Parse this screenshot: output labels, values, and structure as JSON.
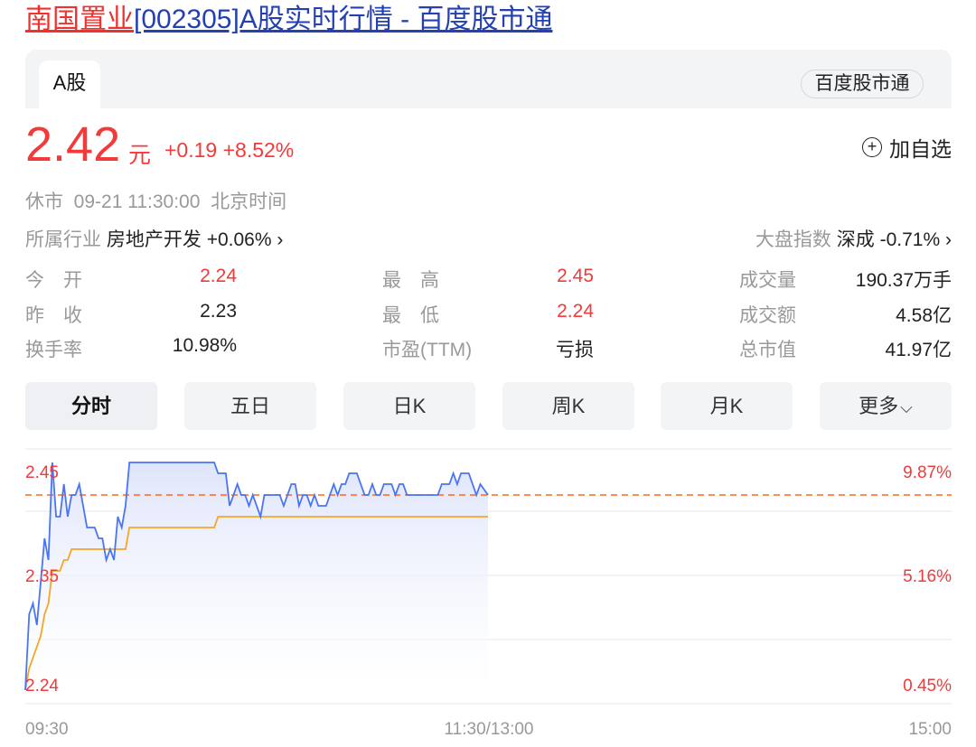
{
  "title": {
    "name": "南国置业",
    "rest": "[002305]A股实时行情 - 百度股市通"
  },
  "tabs": {
    "active": "A股",
    "badge": "百度股市通"
  },
  "quote": {
    "price": "2.42",
    "unit": "元",
    "change": "+0.19",
    "change_pct": "+8.52%",
    "add_watch": "加自选",
    "status": "休市",
    "datetime": "09-21 11:30:00",
    "timezone": "北京时间",
    "industry_label": "所属行业",
    "industry_name": "房地产开发",
    "industry_change": "+0.06%",
    "index_label": "大盘指数",
    "index_name": "深成",
    "index_change": "-0.71%"
  },
  "stats": [
    {
      "label": "今　开",
      "value": "2.24",
      "red": true
    },
    {
      "label": "最　高",
      "value": "2.45",
      "red": true
    },
    {
      "label": "成交量",
      "value": "190.37万手",
      "red": false
    },
    {
      "label": "昨　收",
      "value": "2.23",
      "red": false
    },
    {
      "label": "最　低",
      "value": "2.24",
      "red": true
    },
    {
      "label": "成交额",
      "value": "4.58亿",
      "red": false
    },
    {
      "label": "换手率",
      "value": "10.98%",
      "red": false
    },
    {
      "label": "市盈(TTM)",
      "value": "亏损",
      "red": false
    },
    {
      "label": "总市值",
      "value": "41.97亿",
      "red": false
    }
  ],
  "periods": [
    "分时",
    "五日",
    "日K",
    "周K",
    "月K",
    "更多"
  ],
  "colors": {
    "up": "#f23a3a",
    "price_line": "#4a74f5",
    "avg_line": "#f5a623",
    "prev_close": "#f56a1f"
  },
  "chart_data": {
    "type": "line",
    "prev_close": 2.23,
    "ref_line": 2.42,
    "ylim": [
      2.24,
      2.45
    ],
    "y_ticks_left": [
      "2.45",
      "2.35",
      "2.24"
    ],
    "y_ticks_right": [
      "9.87%",
      "5.16%",
      "0.45%"
    ],
    "x_ticks": [
      "09:30",
      "11:30/13:00",
      "15:00"
    ],
    "series": [
      {
        "type": "price",
        "points": [
          [
            "09:30",
            2.24
          ],
          [
            "09:31",
            2.31
          ],
          [
            "09:32",
            2.32
          ],
          [
            "09:33",
            2.3
          ],
          [
            "09:34",
            2.34
          ],
          [
            "09:35",
            2.38
          ],
          [
            "09:36",
            2.36
          ],
          [
            "09:37",
            2.45
          ],
          [
            "09:38",
            2.4
          ],
          [
            "09:39",
            2.4
          ],
          [
            "09:40",
            2.43
          ],
          [
            "09:41",
            2.4
          ],
          [
            "09:42",
            2.42
          ],
          [
            "09:43",
            2.42
          ],
          [
            "09:44",
            2.43
          ],
          [
            "09:46",
            2.39
          ],
          [
            "09:48",
            2.39
          ],
          [
            "09:49",
            2.38
          ],
          [
            "09:50",
            2.38
          ],
          [
            "09:51",
            2.36
          ],
          [
            "09:52",
            2.37
          ],
          [
            "09:53",
            2.36
          ],
          [
            "09:54",
            2.4
          ],
          [
            "09:55",
            2.39
          ],
          [
            "09:56",
            2.41
          ],
          [
            "09:57",
            2.45
          ],
          [
            "10:19",
            2.45
          ],
          [
            "10:20",
            2.44
          ],
          [
            "10:22",
            2.44
          ],
          [
            "10:23",
            2.41
          ],
          [
            "10:25",
            2.43
          ],
          [
            "10:26",
            2.42
          ],
          [
            "10:27",
            2.42
          ],
          [
            "10:28",
            2.41
          ],
          [
            "10:29",
            2.42
          ],
          [
            "10:31",
            2.4
          ],
          [
            "10:32",
            2.42
          ],
          [
            "10:36",
            2.42
          ],
          [
            "10:37",
            2.41
          ],
          [
            "10:39",
            2.43
          ],
          [
            "10:40",
            2.43
          ],
          [
            "10:41",
            2.41
          ],
          [
            "10:42",
            2.42
          ],
          [
            "10:43",
            2.42
          ],
          [
            "10:44",
            2.41
          ],
          [
            "10:45",
            2.42
          ],
          [
            "10:46",
            2.41
          ],
          [
            "10:48",
            2.41
          ],
          [
            "10:50",
            2.43
          ],
          [
            "10:51",
            2.42
          ],
          [
            "10:52",
            2.43
          ],
          [
            "10:53",
            2.43
          ],
          [
            "10:54",
            2.44
          ],
          [
            "10:56",
            2.44
          ],
          [
            "10:58",
            2.42
          ],
          [
            "10:59",
            2.42
          ],
          [
            "11:00",
            2.43
          ],
          [
            "11:01",
            2.42
          ],
          [
            "11:02",
            2.42
          ],
          [
            "11:03",
            2.43
          ],
          [
            "11:05",
            2.43
          ],
          [
            "11:06",
            2.42
          ],
          [
            "11:07",
            2.43
          ],
          [
            "11:08",
            2.43
          ],
          [
            "11:09",
            2.42
          ],
          [
            "11:17",
            2.42
          ],
          [
            "11:18",
            2.43
          ],
          [
            "11:20",
            2.43
          ],
          [
            "11:21",
            2.44
          ],
          [
            "11:22",
            2.43
          ],
          [
            "11:23",
            2.44
          ],
          [
            "11:25",
            2.44
          ],
          [
            "11:27",
            2.42
          ],
          [
            "11:28",
            2.43
          ],
          [
            "11:30",
            2.42
          ]
        ]
      },
      {
        "type": "average",
        "points": [
          [
            "09:30",
            2.24
          ],
          [
            "09:31",
            2.26
          ],
          [
            "09:34",
            2.29
          ],
          [
            "09:35",
            2.31
          ],
          [
            "09:36",
            2.32
          ],
          [
            "09:37",
            2.35
          ],
          [
            "09:39",
            2.35
          ],
          [
            "09:40",
            2.36
          ],
          [
            "09:41",
            2.36
          ],
          [
            "09:42",
            2.37
          ],
          [
            "09:56",
            2.37
          ],
          [
            "09:57",
            2.39
          ],
          [
            "10:19",
            2.39
          ],
          [
            "10:20",
            2.4
          ],
          [
            "11:30",
            2.4
          ]
        ]
      }
    ]
  }
}
